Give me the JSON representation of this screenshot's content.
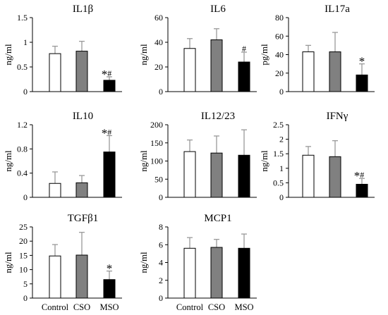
{
  "chart_data": [
    {
      "type": "bar",
      "title": "IL1β",
      "ylabel": "ng/ml",
      "categories": [
        "Control",
        "CSO",
        "MSO"
      ],
      "ylim": [
        0,
        1.5
      ],
      "yticks": [
        "0",
        "0.5",
        "1",
        "1.5"
      ],
      "values": [
        0.77,
        0.82,
        0.23
      ],
      "errors": [
        0.15,
        0.2,
        0.07
      ],
      "annotations": [
        "",
        "",
        "*#"
      ]
    },
    {
      "type": "bar",
      "title": "IL6",
      "ylabel": "ng/ml",
      "categories": [
        "Control",
        "CSO",
        "MSO"
      ],
      "ylim": [
        0,
        60
      ],
      "yticks": [
        "0",
        "20",
        "40",
        "60"
      ],
      "values": [
        35,
        42,
        24
      ],
      "errors": [
        8,
        9,
        8
      ],
      "annotations": [
        "",
        "",
        "#"
      ]
    },
    {
      "type": "bar",
      "title": "IL17a",
      "ylabel": "pg/ml",
      "categories": [
        "Control",
        "CSO",
        "MSO"
      ],
      "ylim": [
        0,
        80
      ],
      "yticks": [
        "0",
        "20",
        "40",
        "60",
        "80"
      ],
      "values": [
        43,
        43,
        18
      ],
      "errors": [
        7,
        21,
        12
      ],
      "annotations": [
        "",
        "",
        "*"
      ]
    },
    {
      "type": "bar",
      "title": "IL10",
      "ylabel": "ng/ml",
      "categories": [
        "Control",
        "CSO",
        "MSO"
      ],
      "ylim": [
        0,
        1.2
      ],
      "yticks": [
        "0",
        "0.4",
        "0.8",
        "1.2"
      ],
      "values": [
        0.23,
        0.24,
        0.75
      ],
      "errors": [
        0.19,
        0.12,
        0.27
      ],
      "annotations": [
        "",
        "",
        "*#"
      ]
    },
    {
      "type": "bar",
      "title": "IL12/23",
      "ylabel": "ng/ml",
      "categories": [
        "Control",
        "CSO",
        "MSO"
      ],
      "ylim": [
        0,
        200
      ],
      "yticks": [
        "0",
        "50",
        "100",
        "150",
        "200"
      ],
      "values": [
        126,
        122,
        116
      ],
      "errors": [
        32,
        47,
        70
      ],
      "annotations": [
        "",
        "",
        ""
      ]
    },
    {
      "type": "bar",
      "title": "IFNγ",
      "ylabel": "ng/ml",
      "categories": [
        "Control",
        "CSO",
        "MSO"
      ],
      "ylim": [
        0,
        2.5
      ],
      "yticks": [
        "0",
        "0.5",
        "1",
        "1.5",
        "2",
        "2.5"
      ],
      "values": [
        1.45,
        1.4,
        0.45
      ],
      "errors": [
        0.3,
        0.55,
        0.2
      ],
      "annotations": [
        "",
        "",
        "*#"
      ]
    },
    {
      "type": "bar",
      "title": "TGFβ1",
      "ylabel": "ng/ml",
      "categories": [
        "Control",
        "CSO",
        "MSO"
      ],
      "ylim": [
        0,
        25
      ],
      "yticks": [
        "0",
        "5",
        "10",
        "15",
        "20",
        "25"
      ],
      "values": [
        14.8,
        15.1,
        6.5
      ],
      "errors": [
        4,
        8,
        3
      ],
      "annotations": [
        "",
        "",
        "*"
      ]
    },
    {
      "type": "bar",
      "title": "MCP1",
      "ylabel": "ng/ml",
      "categories": [
        "Control",
        "CSO",
        "MSO"
      ],
      "ylim": [
        0,
        8
      ],
      "yticks": [
        "0",
        "2",
        "4",
        "6",
        "8"
      ],
      "values": [
        5.6,
        5.7,
        5.6
      ],
      "errors": [
        1.2,
        0.9,
        1.6
      ],
      "annotations": [
        "",
        "",
        ""
      ]
    }
  ],
  "colors": {
    "Control": "#ffffff",
    "CSO": "#808080",
    "MSO": "#000000",
    "error_bar": "#999999",
    "axis": "#000000"
  }
}
